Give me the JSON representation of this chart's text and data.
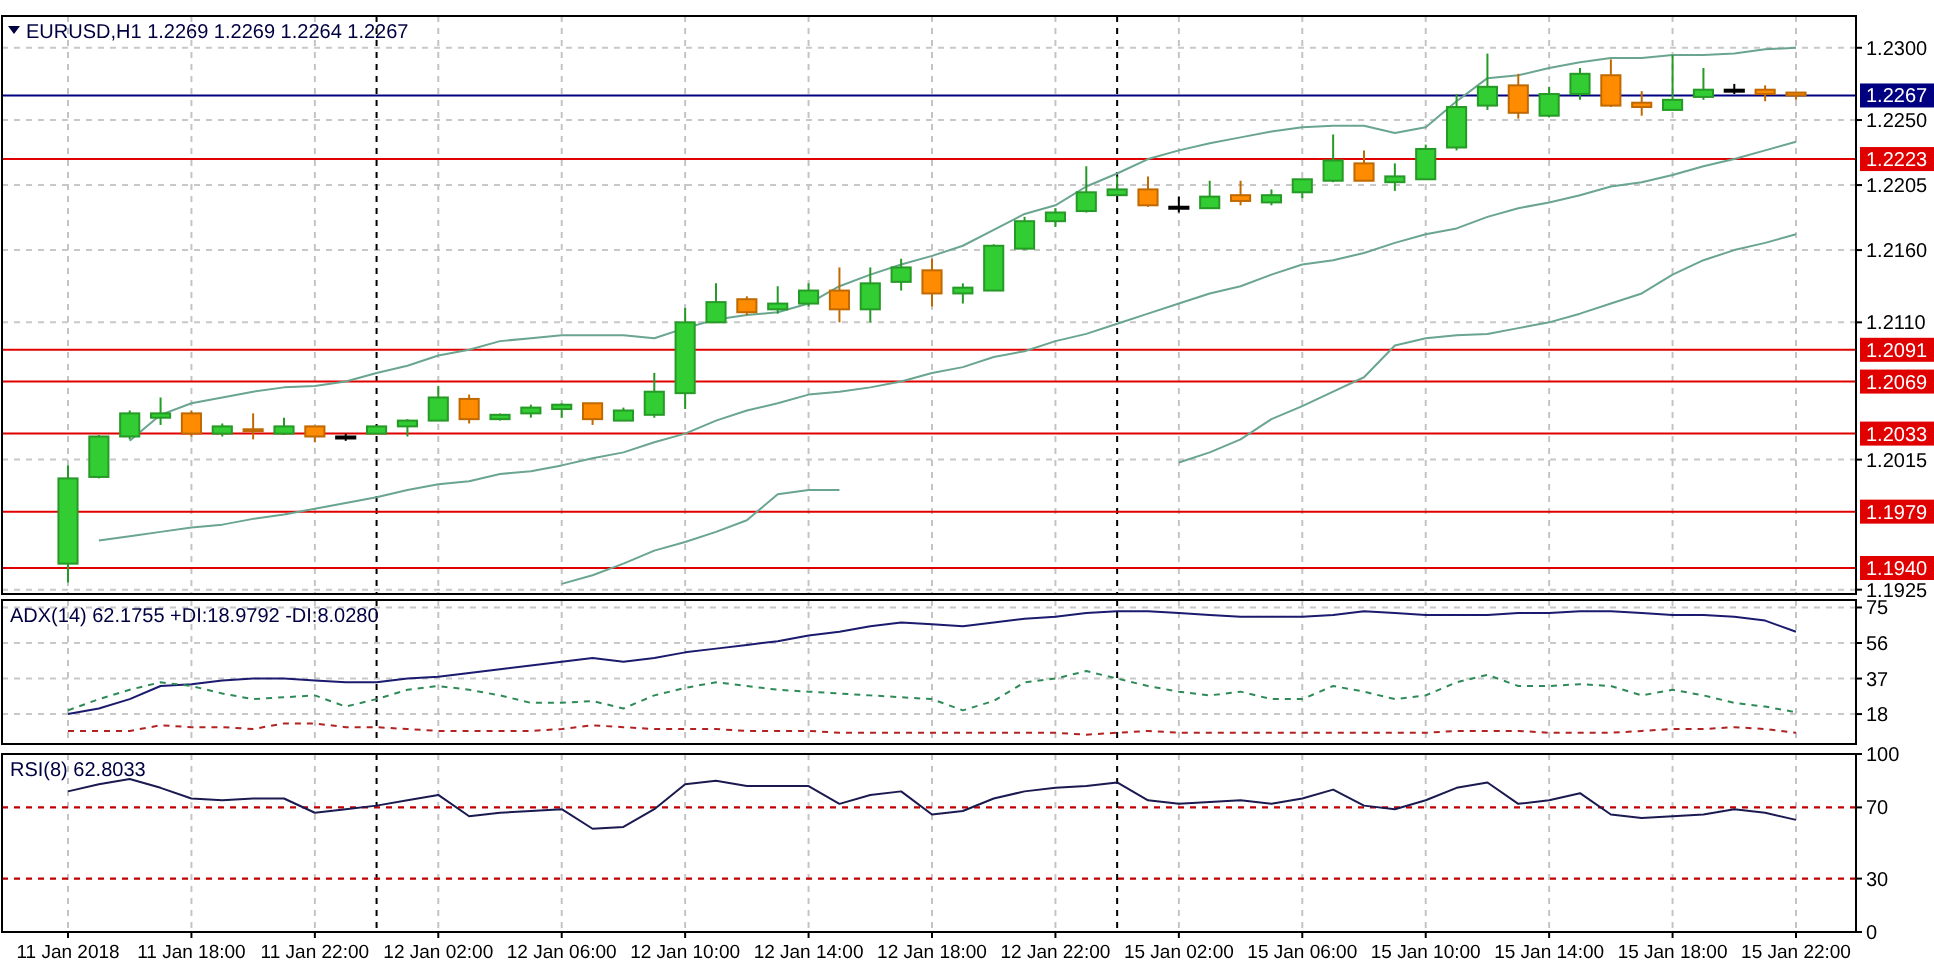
{
  "chart_data": [
    {
      "type": "candlestick",
      "title": "EURUSD,H1  1.2269 1.2269 1.2264 1.2267",
      "categories": [
        null,
        null,
        null,
        null,
        null,
        null,
        null,
        null,
        null,
        null,
        null,
        null,
        null,
        null,
        null,
        null,
        null,
        null,
        null,
        null,
        null,
        null,
        null,
        null,
        null,
        null,
        null,
        null,
        null,
        null,
        null,
        null,
        null,
        null,
        null,
        null,
        null,
        null,
        null,
        null,
        null,
        null,
        null,
        null,
        null,
        null,
        null,
        null,
        null,
        null,
        null,
        null,
        null,
        null,
        null,
        null,
        null
      ],
      "ohlc": [
        [
          1.1943,
          1.2011,
          1.193,
          1.2002
        ],
        [
          1.2003,
          1.2032,
          1.2002,
          1.2031
        ],
        [
          1.2031,
          1.2049,
          1.2029,
          1.2047
        ],
        [
          1.2044,
          1.2058,
          1.2039,
          1.2047
        ],
        [
          1.2047,
          1.2049,
          1.2031,
          1.2033
        ],
        [
          1.2033,
          1.204,
          1.2031,
          1.2038
        ],
        [
          1.2036,
          1.2047,
          1.2029,
          1.2035
        ],
        [
          1.2033,
          1.2044,
          1.2032,
          1.2038
        ],
        [
          1.2038,
          1.2038,
          1.2027,
          1.2031
        ],
        [
          1.2031,
          1.2033,
          1.2028,
          1.2031
        ],
        [
          1.2033,
          1.2038,
          1.2033,
          1.2038
        ],
        [
          1.2038,
          1.2043,
          1.2031,
          1.2042
        ],
        [
          1.2042,
          1.2066,
          1.2042,
          1.2058
        ],
        [
          1.2057,
          1.206,
          1.204,
          1.2043
        ],
        [
          1.2043,
          1.2047,
          1.2042,
          1.2046
        ],
        [
          1.2047,
          1.2053,
          1.2044,
          1.2051
        ],
        [
          1.205,
          1.2054,
          1.2044,
          1.2053
        ],
        [
          1.2054,
          1.2054,
          1.2039,
          1.2043
        ],
        [
          1.2042,
          1.2051,
          1.2042,
          1.2049
        ],
        [
          1.2046,
          1.2075,
          1.2044,
          1.2062
        ],
        [
          1.2061,
          1.212,
          1.205,
          1.211
        ],
        [
          1.211,
          1.2137,
          1.211,
          1.2124
        ],
        [
          1.2126,
          1.2128,
          1.2115,
          1.2117
        ],
        [
          1.2119,
          1.2135,
          1.2116,
          1.2123
        ],
        [
          1.2123,
          1.2137,
          1.2121,
          1.2132
        ],
        [
          1.2132,
          1.2148,
          1.211,
          1.2119
        ],
        [
          1.2119,
          1.2148,
          1.211,
          1.2137
        ],
        [
          1.2138,
          1.2154,
          1.2132,
          1.2148
        ],
        [
          1.2146,
          1.2154,
          1.2121,
          1.213
        ],
        [
          1.213,
          1.2137,
          1.2123,
          1.2134
        ],
        [
          1.2132,
          1.2164,
          1.2132,
          1.2163
        ],
        [
          1.2161,
          1.2183,
          1.216,
          1.218
        ],
        [
          1.218,
          1.2189,
          1.2176,
          1.2186
        ],
        [
          1.2187,
          1.2218,
          1.2186,
          1.22
        ],
        [
          1.2198,
          1.2211,
          1.2198,
          1.2202
        ],
        [
          1.2202,
          1.2211,
          1.219,
          1.2191
        ],
        [
          1.219,
          1.2197,
          1.2186,
          1.219
        ],
        [
          1.2189,
          1.2208,
          1.2189,
          1.2197
        ],
        [
          1.2198,
          1.2208,
          1.2191,
          1.2194
        ],
        [
          1.2193,
          1.2202,
          1.2191,
          1.2198
        ],
        [
          1.22,
          1.2209,
          1.2196,
          1.2209
        ],
        [
          1.2208,
          1.224,
          1.2207,
          1.2222
        ],
        [
          1.222,
          1.2229,
          1.2208,
          1.2208
        ],
        [
          1.2207,
          1.222,
          1.2201,
          1.2211
        ],
        [
          1.2209,
          1.2233,
          1.2209,
          1.223
        ],
        [
          1.2231,
          1.2268,
          1.2229,
          1.2259
        ],
        [
          1.226,
          1.2296,
          1.2257,
          1.2273
        ],
        [
          1.2274,
          1.2282,
          1.2251,
          1.2255
        ],
        [
          1.2253,
          1.2273,
          1.2252,
          1.2268
        ],
        [
          1.2268,
          1.2286,
          1.2264,
          1.2282
        ],
        [
          1.2281,
          1.2292,
          1.2259,
          1.226
        ],
        [
          1.2262,
          1.227,
          1.2253,
          1.2259
        ],
        [
          1.2257,
          1.2295,
          1.2257,
          1.2264
        ],
        [
          1.2266,
          1.2286,
          1.2264,
          1.2271
        ],
        [
          1.2271,
          1.2275,
          1.2268,
          1.2271
        ],
        [
          1.2271,
          1.2274,
          1.2263,
          1.2268
        ],
        [
          1.2269,
          1.2269,
          1.2264,
          1.2267
        ]
      ],
      "colors": [
        "#32cd32",
        "#32cd32",
        "#32cd32",
        "#32cd32",
        "#ff8c00",
        "#32cd32",
        "#ff8c00",
        "#32cd32",
        "#ff8c00",
        "#000000",
        "#32cd32",
        "#32cd32",
        "#32cd32",
        "#ff8c00",
        "#32cd32",
        "#32cd32",
        "#32cd32",
        "#ff8c00",
        "#32cd32",
        "#32cd32",
        "#32cd32",
        "#32cd32",
        "#ff8c00",
        "#32cd32",
        "#32cd32",
        "#ff8c00",
        "#32cd32",
        "#32cd32",
        "#ff8c00",
        "#32cd32",
        "#32cd32",
        "#32cd32",
        "#32cd32",
        "#32cd32",
        "#32cd32",
        "#ff8c00",
        "#000000",
        "#32cd32",
        "#ff8c00",
        "#32cd32",
        "#32cd32",
        "#32cd32",
        "#ff8c00",
        "#32cd32",
        "#32cd32",
        "#32cd32",
        "#32cd32",
        "#ff8c00",
        "#32cd32",
        "#32cd32",
        "#ff8c00",
        "#ff8c00",
        "#32cd32",
        "#32cd32",
        "#000000",
        "#ff8c00",
        "#ff8c00"
      ],
      "series": [
        {
          "type": "line",
          "color": "#6aa58f",
          "values": [
            null,
            null,
            1.2028,
            1.2046,
            1.2054,
            1.2058,
            1.2062,
            1.2065,
            1.2066,
            1.2069,
            1.2075,
            1.208,
            1.2087,
            1.2091,
            1.2097,
            1.2099,
            1.2101,
            1.2101,
            1.2101,
            1.2099,
            1.2106,
            1.2112,
            1.2115,
            1.2117,
            1.2123,
            1.2135,
            1.2143,
            1.215,
            1.2156,
            1.2163,
            1.2174,
            1.2185,
            1.2191,
            1.2204,
            1.2213,
            1.2223,
            1.2229,
            1.2234,
            1.2238,
            1.2242,
            1.2245,
            1.2246,
            1.2246,
            1.2241,
            1.2245,
            1.2263,
            1.2279,
            1.2281,
            1.2286,
            1.229,
            1.2293,
            1.2293,
            1.2295,
            1.2295,
            1.2296,
            1.2299,
            1.23
          ]
        },
        {
          "type": "line",
          "color": "#6aa58f",
          "values": [
            null,
            1.1959,
            1.1962,
            1.1965,
            1.1968,
            1.197,
            1.1974,
            1.1977,
            1.1981,
            1.1985,
            1.1989,
            1.1994,
            1.1998,
            1.2,
            1.2005,
            1.2007,
            1.2011,
            1.2016,
            1.202,
            1.2027,
            1.2033,
            1.2042,
            1.2049,
            1.2054,
            1.206,
            1.2062,
            1.2065,
            1.2069,
            1.2075,
            1.2079,
            1.2086,
            1.209,
            1.2097,
            1.2102,
            1.2109,
            1.2116,
            1.2123,
            1.213,
            1.2135,
            1.2143,
            1.215,
            1.2153,
            1.2158,
            1.2165,
            1.2171,
            1.2175,
            1.2183,
            1.2189,
            1.2193,
            1.2198,
            1.2204,
            1.2207,
            1.2212,
            1.2218,
            1.2223,
            1.2229,
            1.2235
          ]
        },
        {
          "type": "line",
          "color": "#6aa58f",
          "values": [
            null,
            null,
            null,
            null,
            null,
            null,
            null,
            null,
            null,
            null,
            null,
            null,
            null,
            null,
            null,
            null,
            1.1929,
            1.1935,
            1.1943,
            1.1952,
            1.1958,
            1.1965,
            1.1973,
            1.1991,
            1.1994,
            1.1994,
            null,
            null,
            null,
            null,
            null,
            null,
            null,
            null,
            null,
            null,
            1.2013,
            1.202,
            1.2029,
            1.2043,
            1.2052,
            1.2062,
            1.2072,
            1.2094,
            1.2099,
            1.2101,
            1.2102,
            1.2106,
            1.211,
            1.2116,
            1.2123,
            1.213,
            1.2143,
            1.2153,
            1.216,
            1.2165,
            1.2171
          ]
        }
      ],
      "ylim": [
        1.1922,
        1.2322
      ],
      "yticks": [
        {
          "value": 1.23,
          "label": "1.2300"
        },
        {
          "value": 1.225,
          "label": "1.2250"
        },
        {
          "value": 1.2205,
          "label": "1.2205"
        },
        {
          "value": 1.216,
          "label": "1.2160"
        },
        {
          "value": 1.211,
          "label": "1.2110"
        },
        {
          "value": 1.2015,
          "label": "1.2015"
        },
        {
          "value": 1.1925,
          "label": "1.1925"
        }
      ],
      "ref_lines": [
        {
          "axis": "y",
          "value": 1.2267,
          "label": "1.2267",
          "color": "#000080"
        },
        {
          "axis": "y",
          "value": 1.2223,
          "label": "1.2223",
          "color": "#e00000"
        },
        {
          "axis": "y",
          "value": 1.2091,
          "label": "1.2091",
          "color": "#e00000"
        },
        {
          "axis": "y",
          "value": 1.2069,
          "label": "1.2069",
          "color": "#e00000"
        },
        {
          "axis": "y",
          "value": 1.2033,
          "label": "1.2033",
          "color": "#e00000"
        },
        {
          "axis": "y",
          "value": 1.1979,
          "label": "1.1979",
          "color": "#e00000"
        },
        {
          "axis": "y",
          "value": 1.194,
          "label": "1.1940",
          "color": "#e00000"
        }
      ],
      "grid": true,
      "tick_labels": "y"
    },
    {
      "type": "line",
      "title": "ADX(14) 62.1755 +DI:18.9792 -DI:8.0280",
      "categories": [
        null,
        null,
        null,
        null,
        null,
        null,
        null,
        null,
        null,
        null,
        null,
        null,
        null,
        null,
        null,
        null,
        null,
        null,
        null,
        null,
        null,
        null,
        null,
        null,
        null,
        null,
        null,
        null,
        null,
        null,
        null,
        null,
        null,
        null,
        null,
        null,
        null,
        null,
        null,
        null,
        null,
        null,
        null,
        null,
        null,
        null,
        null,
        null,
        null,
        null,
        null,
        null,
        null,
        null,
        null,
        null,
        null
      ],
      "series": [
        {
          "color": "#1a1a6e",
          "line_style": "solid",
          "values": [
            18,
            21,
            26,
            33,
            34,
            36,
            37,
            37,
            36,
            35,
            35,
            37,
            38,
            40,
            42,
            44,
            46,
            48,
            46,
            48,
            51,
            53,
            55,
            57,
            60,
            62,
            65,
            67,
            66,
            65,
            67,
            69,
            70,
            72,
            73,
            73,
            72,
            71,
            70,
            70,
            70,
            71,
            73,
            72,
            71,
            71,
            71,
            72,
            72,
            73,
            73,
            72,
            71,
            71,
            70,
            68,
            62
          ]
        },
        {
          "color": "#2e8b57",
          "line_style": "dashed",
          "values": [
            20,
            26,
            31,
            35,
            33,
            29,
            26,
            27,
            28,
            22,
            26,
            31,
            33,
            31,
            28,
            24,
            24,
            25,
            21,
            28,
            32,
            35,
            33,
            31,
            30,
            29,
            28,
            27,
            26,
            20,
            25,
            35,
            37,
            41,
            37,
            33,
            30,
            28,
            30,
            26,
            26,
            33,
            30,
            26,
            28,
            35,
            39,
            33,
            33,
            34,
            33,
            28,
            31,
            28,
            24,
            22,
            19
          ]
        },
        {
          "color": "#b22222",
          "line_style": "dashed",
          "values": [
            9,
            9,
            9,
            12,
            11,
            11,
            10,
            13,
            13,
            11,
            11,
            10,
            9,
            9,
            9,
            9,
            10,
            12,
            11,
            10,
            10,
            10,
            9,
            9,
            9,
            8,
            8,
            8,
            8,
            8,
            8,
            8,
            8,
            7,
            8,
            9,
            8,
            8,
            8,
            8,
            8,
            8,
            8,
            8,
            8,
            9,
            9,
            9,
            8,
            8,
            8,
            9,
            10,
            10,
            11,
            10,
            8
          ]
        }
      ],
      "ylim": [
        2,
        79
      ],
      "yticks": [
        75,
        56,
        37,
        18
      ],
      "grid": true,
      "tick_labels": "y"
    },
    {
      "type": "line",
      "title": "RSI(8) 62.8033",
      "categories": [
        "11 Jan 2018",
        null,
        null,
        null,
        "11 Jan 18:00",
        null,
        null,
        null,
        "11 Jan 22:00",
        null,
        null,
        null,
        "12 Jan 02:00",
        null,
        null,
        null,
        "12 Jan 06:00",
        null,
        null,
        null,
        "12 Jan 10:00",
        null,
        null,
        null,
        "12 Jan 14:00",
        null,
        null,
        null,
        "12 Jan 18:00",
        null,
        null,
        null,
        "12 Jan 22:00",
        null,
        null,
        null,
        "15 Jan 02:00",
        null,
        null,
        null,
        "15 Jan 06:00",
        null,
        null,
        null,
        "15 Jan 10:00",
        null,
        null,
        null,
        "15 Jan 14:00",
        null,
        null,
        null,
        "15 Jan 18:00",
        null,
        null,
        null,
        "15 Jan 22:00"
      ],
      "series": [
        {
          "color": "#1a1a50",
          "line_style": "solid",
          "values": [
            79,
            83,
            86,
            81,
            75,
            74,
            75,
            75,
            67,
            69,
            71,
            74,
            77,
            65,
            67,
            68,
            69,
            58,
            59,
            69,
            83,
            85,
            82,
            82,
            82,
            72,
            77,
            79,
            66,
            68,
            75,
            79,
            81,
            82,
            84,
            74,
            72,
            73,
            74,
            72,
            75,
            80,
            71,
            69,
            74,
            81,
            84,
            72,
            74,
            78,
            66,
            64,
            65,
            66,
            69,
            67,
            63
          ]
        }
      ],
      "ylim": [
        0,
        100
      ],
      "yticks": [
        100,
        70,
        30,
        0
      ],
      "ref_lines": [
        {
          "axis": "y",
          "value": 70,
          "color": "#c00000",
          "line_style": "dashed"
        },
        {
          "axis": "y",
          "value": 30,
          "color": "#c00000",
          "line_style": "dashed"
        }
      ],
      "grid": true
    }
  ]
}
